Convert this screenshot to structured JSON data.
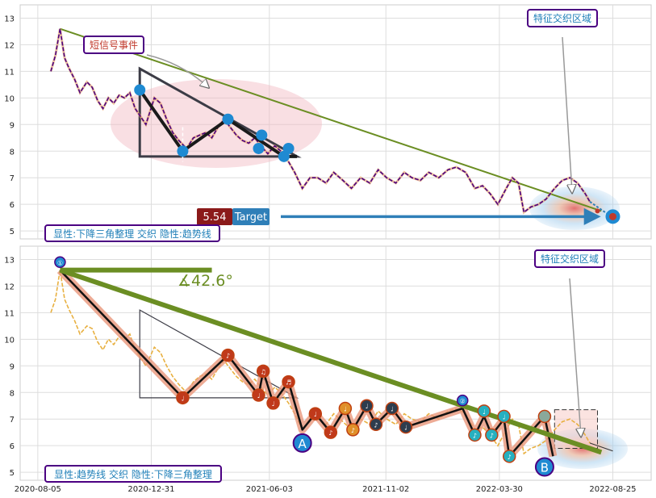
{
  "chart_data": [
    {
      "type": "line",
      "panel": "top",
      "ylim": [
        4.7,
        13.5
      ],
      "y_ticks": [
        5,
        6,
        7,
        8,
        9,
        10,
        11,
        12,
        13
      ],
      "grid": true,
      "series": [
        {
          "values": [
            [
              "2020-08-22",
              11.0
            ],
            [
              "2020-08-28",
              11.6
            ],
            [
              "2020-09-03",
              12.6
            ],
            [
              "2020-09-09",
              11.5
            ],
            [
              "2020-09-15",
              11.1
            ],
            [
              "2020-09-22",
              10.7
            ],
            [
              "2020-09-29",
              10.2
            ],
            [
              "2020-10-08",
              10.6
            ],
            [
              "2020-10-15",
              10.4
            ],
            [
              "2020-10-22",
              9.9
            ],
            [
              "2020-10-29",
              9.6
            ],
            [
              "2020-11-05",
              10.0
            ],
            [
              "2020-11-12",
              9.8
            ],
            [
              "2020-11-19",
              10.1
            ],
            [
              "2020-11-26",
              10.0
            ],
            [
              "2020-12-03",
              10.2
            ],
            [
              "2020-12-10",
              9.6
            ],
            [
              "2020-12-17",
              9.3
            ],
            [
              "2020-12-24",
              9.0
            ],
            [
              "2021-01-04",
              10.0
            ],
            [
              "2021-01-12",
              9.8
            ],
            [
              "2021-01-20",
              9.2
            ],
            [
              "2021-01-28",
              8.7
            ],
            [
              "2021-02-05",
              8.4
            ],
            [
              "2021-02-15",
              8.1
            ],
            [
              "2021-02-24",
              8.5
            ],
            [
              "2021-03-04",
              8.6
            ],
            [
              "2021-03-12",
              8.7
            ],
            [
              "2021-03-20",
              8.5
            ],
            [
              "2021-03-28",
              8.9
            ],
            [
              "2021-04-05",
              9.2
            ],
            [
              "2021-04-13",
              8.9
            ],
            [
              "2021-04-21",
              8.6
            ],
            [
              "2021-04-29",
              8.4
            ],
            [
              "2021-05-07",
              8.3
            ],
            [
              "2021-05-15",
              8.5
            ],
            [
              "2021-05-23",
              8.2
            ],
            [
              "2021-06-01",
              7.9
            ],
            [
              "2021-06-10",
              8.2
            ],
            [
              "2021-06-18",
              8.0
            ],
            [
              "2021-06-28",
              7.6
            ],
            [
              "2021-07-06",
              7.2
            ],
            [
              "2021-07-16",
              6.6
            ],
            [
              "2021-07-26",
              7.0
            ],
            [
              "2021-08-05",
              7.0
            ],
            [
              "2021-08-16",
              6.8
            ],
            [
              "2021-08-26",
              7.2
            ],
            [
              "2021-09-07",
              6.9
            ],
            [
              "2021-09-18",
              6.6
            ],
            [
              "2021-09-30",
              7.0
            ],
            [
              "2021-10-12",
              6.8
            ],
            [
              "2021-10-23",
              7.3
            ],
            [
              "2021-11-03",
              7.0
            ],
            [
              "2021-11-15",
              6.8
            ],
            [
              "2021-11-26",
              7.2
            ],
            [
              "2021-12-06",
              7.0
            ],
            [
              "2021-12-17",
              6.9
            ],
            [
              "2021-12-28",
              7.2
            ],
            [
              "2022-01-10",
              7.0
            ],
            [
              "2022-01-22",
              7.3
            ],
            [
              "2022-02-02",
              7.4
            ],
            [
              "2022-02-14",
              7.2
            ],
            [
              "2022-02-26",
              6.6
            ],
            [
              "2022-03-08",
              6.7
            ],
            [
              "2022-03-18",
              6.4
            ],
            [
              "2022-03-28",
              6.0
            ],
            [
              "2022-04-08",
              6.6
            ],
            [
              "2022-04-16",
              7.0
            ],
            [
              "2022-04-24",
              6.8
            ],
            [
              "2022-05-01",
              5.7
            ],
            [
              "2022-05-10",
              5.9
            ],
            [
              "2022-05-20",
              6.0
            ],
            [
              "2022-05-30",
              6.2
            ],
            [
              "2022-06-10",
              6.6
            ],
            [
              "2022-06-20",
              6.9
            ],
            [
              "2022-06-30",
              7.0
            ],
            [
              "2022-07-10",
              6.8
            ],
            [
              "2022-07-20",
              6.4
            ],
            [
              "2022-07-26",
              6.1
            ]
          ]
        }
      ],
      "markers": {
        "triangle": [
          [
            "2020-12-16",
            11.1
          ],
          [
            "2020-12-16",
            7.8
          ],
          [
            "2021-07-09",
            7.8
          ]
        ],
        "dots": [
          [
            "2020-12-16",
            10.3
          ],
          [
            "2021-02-10",
            8.0
          ],
          [
            "2021-04-10",
            9.2
          ],
          [
            "2021-05-20",
            8.1
          ],
          [
            "2021-05-24",
            8.6
          ],
          [
            "2021-06-22",
            7.8
          ],
          [
            "2021-06-28",
            8.1
          ]
        ],
        "trend_start": [
          "2020-09-03",
          12.6
        ],
        "trend_end": [
          "2022-08-10",
          5.75
        ],
        "target_value": 5.54
      },
      "annotations": {
        "event_label": "短信号事件",
        "zone_label": "特征交织区域",
        "target_text": "Target",
        "target_value_text": "5.54",
        "caption": "显性:下降三角整理 交织 隐性:趋势线"
      },
      "colors": {
        "price": "#4b0082",
        "trend": "#6b8e23",
        "triangle": "#3c3c46",
        "dot": "#1f8ad2",
        "target": "#2f7fb8",
        "badge": "#8b1a1a"
      }
    },
    {
      "type": "line",
      "panel": "bottom",
      "ylim": [
        4.7,
        13.5
      ],
      "y_ticks": [
        5,
        6,
        7,
        8,
        9,
        10,
        11,
        12,
        13
      ],
      "x_tick_labels": [
        "2020-08-05",
        "2020-12-31",
        "2021-06-03",
        "2021-11-02",
        "2022-03-30",
        "2022-08-25"
      ],
      "grid": true,
      "series": [
        {
          "values": [
            [
              "2020-08-22",
              11.0
            ],
            [
              "2020-08-28",
              11.5
            ],
            [
              "2020-09-03",
              12.6
            ],
            [
              "2020-09-09",
              11.5
            ],
            [
              "2020-09-15",
              11.1
            ],
            [
              "2020-09-22",
              10.7
            ],
            [
              "2020-09-29",
              10.2
            ],
            [
              "2020-10-08",
              10.5
            ],
            [
              "2020-10-15",
              10.4
            ],
            [
              "2020-10-22",
              9.9
            ],
            [
              "2020-10-29",
              9.6
            ],
            [
              "2020-11-05",
              10.0
            ],
            [
              "2020-11-12",
              9.8
            ],
            [
              "2020-11-19",
              10.1
            ],
            [
              "2020-11-26",
              10.0
            ],
            [
              "2020-12-03",
              10.2
            ],
            [
              "2020-12-10",
              9.6
            ],
            [
              "2020-12-17",
              9.3
            ],
            [
              "2020-12-24",
              9.0
            ],
            [
              "2021-01-04",
              9.7
            ],
            [
              "2021-01-12",
              9.5
            ],
            [
              "2021-01-20",
              9.0
            ],
            [
              "2021-01-28",
              8.6
            ],
            [
              "2021-02-05",
              8.3
            ],
            [
              "2021-02-15",
              8.0
            ],
            [
              "2021-02-24",
              8.4
            ],
            [
              "2021-03-04",
              8.6
            ],
            [
              "2021-03-12",
              8.7
            ],
            [
              "2021-03-20",
              8.5
            ],
            [
              "2021-03-28",
              8.9
            ],
            [
              "2021-04-05",
              9.2
            ],
            [
              "2021-04-13",
              8.9
            ],
            [
              "2021-04-21",
              8.6
            ],
            [
              "2021-04-29",
              8.4
            ],
            [
              "2021-05-07",
              8.3
            ],
            [
              "2021-05-15",
              8.5
            ],
            [
              "2021-05-23",
              8.2
            ],
            [
              "2021-06-01",
              7.9
            ],
            [
              "2021-06-10",
              8.2
            ],
            [
              "2021-06-18",
              8.0
            ],
            [
              "2021-06-28",
              7.6
            ],
            [
              "2021-07-06",
              7.2
            ],
            [
              "2021-07-16",
              6.6
            ],
            [
              "2021-07-26",
              7.0
            ],
            [
              "2021-08-05",
              7.0
            ],
            [
              "2021-08-16",
              6.8
            ],
            [
              "2021-08-26",
              7.2
            ],
            [
              "2021-09-07",
              6.9
            ],
            [
              "2021-09-18",
              6.6
            ],
            [
              "2021-09-30",
              7.0
            ],
            [
              "2021-10-12",
              6.8
            ],
            [
              "2021-10-23",
              7.3
            ],
            [
              "2021-11-03",
              7.0
            ],
            [
              "2021-11-15",
              6.8
            ],
            [
              "2021-11-26",
              7.2
            ],
            [
              "2021-12-06",
              7.0
            ],
            [
              "2021-12-17",
              6.9
            ],
            [
              "2021-12-28",
              7.2
            ],
            [
              "2022-01-10",
              7.0
            ],
            [
              "2022-01-22",
              7.3
            ],
            [
              "2022-02-02",
              7.4
            ],
            [
              "2022-02-14",
              7.2
            ],
            [
              "2022-02-26",
              6.6
            ],
            [
              "2022-03-08",
              6.7
            ],
            [
              "2022-03-18",
              6.4
            ],
            [
              "2022-03-28",
              6.0
            ],
            [
              "2022-04-08",
              6.6
            ],
            [
              "2022-04-16",
              7.0
            ],
            [
              "2022-04-24",
              6.8
            ],
            [
              "2022-05-01",
              5.7
            ],
            [
              "2022-05-10",
              5.9
            ],
            [
              "2022-05-20",
              6.0
            ],
            [
              "2022-05-30",
              6.2
            ],
            [
              "2022-06-10",
              6.6
            ],
            [
              "2022-06-20",
              6.9
            ],
            [
              "2022-06-30",
              7.0
            ],
            [
              "2022-07-10",
              6.8
            ],
            [
              "2022-07-20",
              6.4
            ],
            [
              "2022-07-26",
              6.1
            ]
          ]
        }
      ],
      "zigzag": [
        [
          "2020-09-03",
          12.6
        ],
        [
          "2021-02-10",
          7.8
        ],
        [
          "2021-04-10",
          9.4
        ],
        [
          "2021-05-20",
          7.9
        ],
        [
          "2021-05-26",
          8.8
        ],
        [
          "2021-06-08",
          7.6
        ],
        [
          "2021-06-28",
          8.4
        ],
        [
          "2021-07-16",
          6.6
        ],
        [
          "2021-08-02",
          7.2
        ],
        [
          "2021-08-22",
          6.5
        ],
        [
          "2021-09-10",
          7.4
        ],
        [
          "2021-09-20",
          6.6
        ],
        [
          "2021-10-08",
          7.5
        ],
        [
          "2021-10-20",
          6.8
        ],
        [
          "2021-11-10",
          7.4
        ],
        [
          "2021-11-28",
          6.7
        ],
        [
          "2022-02-10",
          7.4
        ],
        [
          "2022-02-26",
          6.4
        ],
        [
          "2022-03-10",
          7.1
        ],
        [
          "2022-03-20",
          6.4
        ],
        [
          "2022-04-05",
          7.0
        ],
        [
          "2022-04-12",
          5.6
        ],
        [
          "2022-05-28",
          7.1
        ],
        [
          "2022-06-08",
          5.6
        ]
      ],
      "zigzag_markers": [
        {
          "at": "2020-09-03",
          "y": 12.9,
          "label": "①",
          "fill": "#1f8ad2"
        },
        {
          "at": "2021-02-10",
          "y": 7.8,
          "label": "♩",
          "fill": "#c0391b"
        },
        {
          "at": "2021-04-10",
          "y": 9.4,
          "label": "♪",
          "fill": "#c0391b"
        },
        {
          "at": "2021-05-20",
          "y": 7.9,
          "label": "♩",
          "fill": "#c0391b"
        },
        {
          "at": "2021-05-26",
          "y": 8.8,
          "label": "♫",
          "fill": "#c0391b"
        },
        {
          "at": "2021-06-08",
          "y": 7.6,
          "label": "♩",
          "fill": "#c0391b"
        },
        {
          "at": "2021-06-28",
          "y": 8.4,
          "label": "♬",
          "fill": "#c0391b"
        },
        {
          "at": "2021-08-02",
          "y": 7.2,
          "label": "♩",
          "fill": "#c0391b"
        },
        {
          "at": "2021-08-22",
          "y": 6.5,
          "label": "♪",
          "fill": "#c0391b"
        },
        {
          "at": "2021-09-10",
          "y": 7.4,
          "label": "♩",
          "fill": "#e0902a"
        },
        {
          "at": "2021-09-20",
          "y": 6.6,
          "label": "♪",
          "fill": "#e0902a"
        },
        {
          "at": "2021-10-08",
          "y": 7.5,
          "label": "♩",
          "fill": "#2e3d4e"
        },
        {
          "at": "2021-10-20",
          "y": 6.8,
          "label": "♪",
          "fill": "#2e3d4e"
        },
        {
          "at": "2021-11-10",
          "y": 7.4,
          "label": "♩",
          "fill": "#2e3d4e"
        },
        {
          "at": "2021-11-28",
          "y": 6.7,
          "label": "♩",
          "fill": "#2e3d4e"
        },
        {
          "at": "2022-02-10",
          "y": 7.7,
          "label": "②",
          "fill": "#1f8ad2"
        },
        {
          "at": "2022-02-26",
          "y": 6.4,
          "label": "♪",
          "fill": "#26b0c0"
        },
        {
          "at": "2022-03-10",
          "y": 7.3,
          "label": "♩",
          "fill": "#26b0c0"
        },
        {
          "at": "2022-03-20",
          "y": 6.4,
          "label": "♪",
          "fill": "#26b0c0"
        },
        {
          "at": "2022-04-05",
          "y": 7.1,
          "label": "♩",
          "fill": "#26b0c0"
        },
        {
          "at": "2022-04-12",
          "y": 5.6,
          "label": "♪",
          "fill": "#26b0c0"
        },
        {
          "at": "2022-05-28",
          "y": 7.1,
          "label": "",
          "fill": "#8aa89a"
        }
      ],
      "markers": {
        "triangle": [
          [
            "2020-12-16",
            11.1
          ],
          [
            "2020-12-16",
            7.8
          ],
          [
            "2021-07-09",
            7.8
          ]
        ],
        "trend_start": [
          "2020-09-03",
          12.6
        ],
        "trend_end": [
          "2022-08-10",
          5.75
        ],
        "flat_line_end": [
          "2021-03-20",
          12.6
        ],
        "A_point": [
          "2021-07-16",
          6.1
        ],
        "B_point": [
          "2022-05-28",
          5.2
        ],
        "zone_box": [
          [
            "2022-06-10",
            7.35
          ],
          [
            "2022-08-05",
            5.9
          ]
        ]
      },
      "annotations": {
        "angle_text": "∡42.6°",
        "label_A": "A",
        "label_B": "B",
        "zone_label": "特征交织区域",
        "caption": "显性:趋势线 交织 隐性:下降三角整理"
      },
      "colors": {
        "price": "#e8b040",
        "trend": "#6b8e23",
        "zigzag_outer": "#e8967a",
        "zigzag_inner": "#111111",
        "triangle": "#3c3c46",
        "ab_circle": "#1f8ad2"
      }
    }
  ]
}
